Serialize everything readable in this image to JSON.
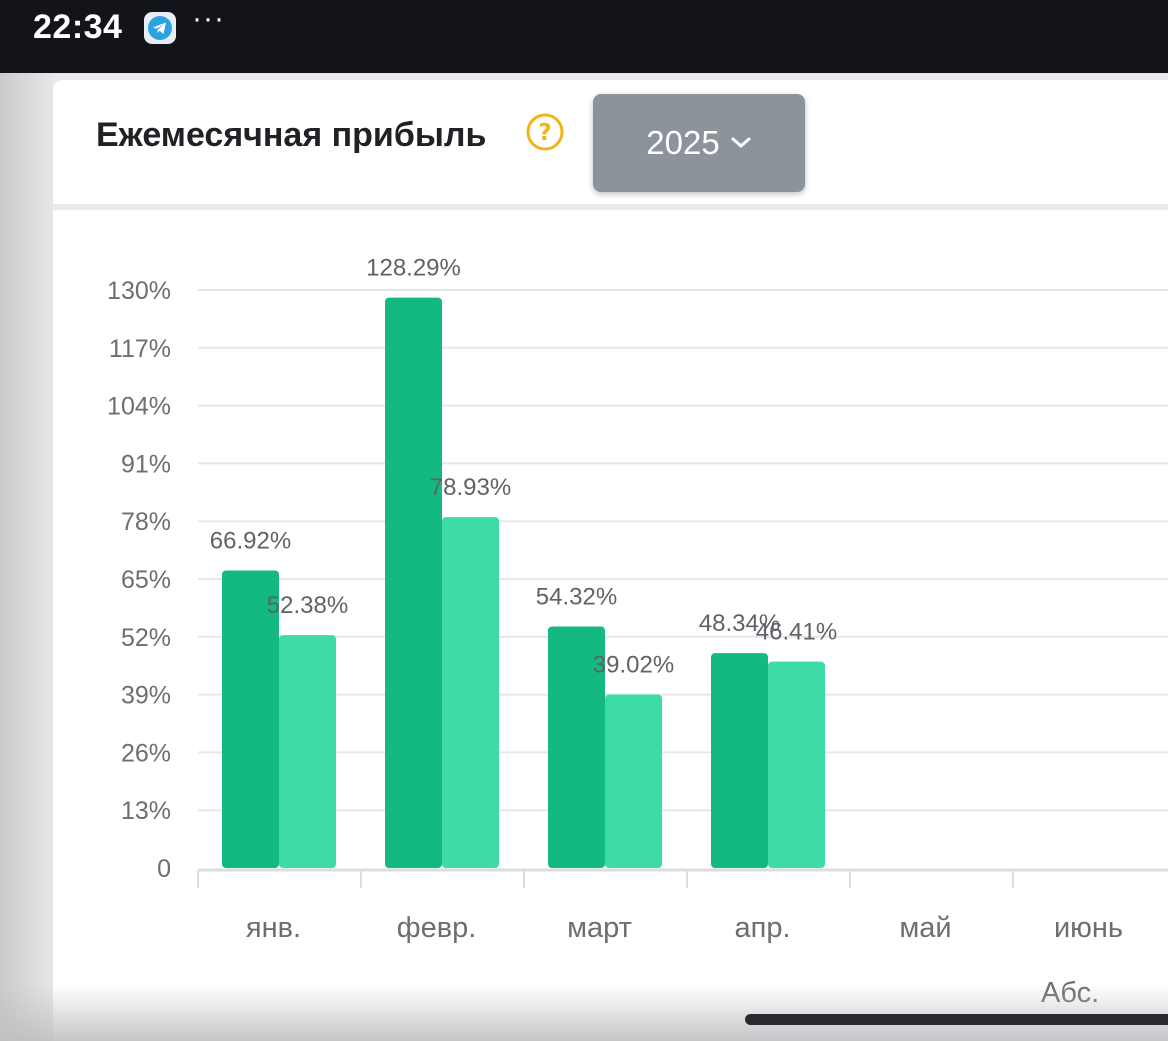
{
  "status_bar": {
    "time": "22:34",
    "more": "···"
  },
  "header": {
    "title": "Ежемесячная прибыль",
    "help_icon": "question-circle-icon",
    "year": "2025"
  },
  "legend_partial": "Абс.",
  "colors": {
    "series_dark": "#14b981",
    "series_light": "#3ddba5",
    "help": "#f2b418",
    "dropdown": "#8c939a"
  },
  "chart_data": {
    "type": "bar",
    "categories": [
      "янв.",
      "февр.",
      "март",
      "апр.",
      "май",
      "июнь"
    ],
    "y_ticks": [
      "0",
      "13%",
      "26%",
      "39%",
      "52%",
      "65%",
      "78%",
      "91%",
      "104%",
      "117%",
      "130%"
    ],
    "ylim": [
      0,
      130
    ],
    "grid": true,
    "series": [
      {
        "values": [
          66.92,
          128.29,
          54.32,
          48.34,
          null,
          null
        ],
        "labels": [
          "66.92%",
          "128.29%",
          "54.32%",
          "48.34%",
          null,
          null
        ]
      },
      {
        "values": [
          52.38,
          78.93,
          39.02,
          46.41,
          null,
          null
        ],
        "labels": [
          "52.38%",
          "78.93%",
          "39.02%",
          "46.41%",
          null,
          null
        ]
      }
    ]
  }
}
